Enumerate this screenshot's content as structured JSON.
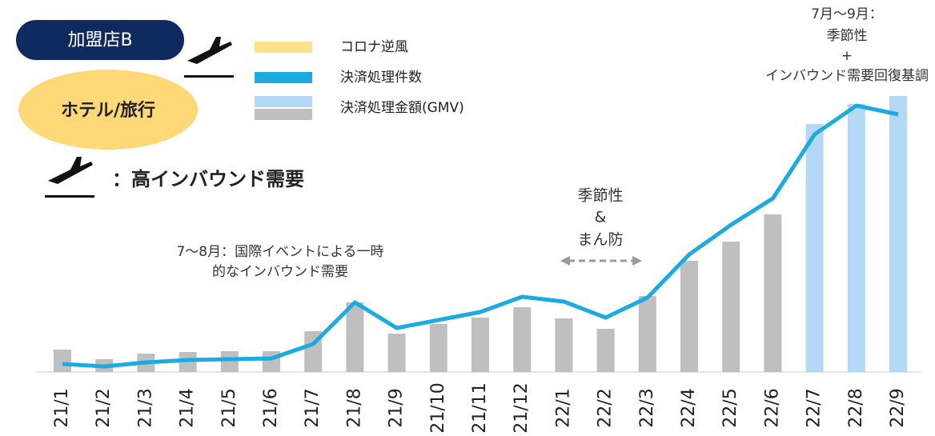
{
  "chart_data": {
    "type": "bar_line",
    "badge": "加盟店B",
    "segment": "ホテル/旅行",
    "icon_note": "：高インバウンド需要",
    "legend": [
      {
        "name": "コロナ逆風",
        "colors": [
          "#ffe187"
        ]
      },
      {
        "name": "決済処理件数",
        "colors": [
          "#1aabe3"
        ]
      },
      {
        "name": "決済処理金額(GMV)",
        "colors": [
          "#b3d9f7",
          "#bfbfbf"
        ]
      }
    ],
    "categories": [
      "21/1",
      "21/2",
      "21/3",
      "21/4",
      "21/5",
      "21/6",
      "21/7",
      "21/8",
      "21/9",
      "21/10",
      "21/11",
      "21/12",
      "22/1",
      "22/2",
      "22/3",
      "22/4",
      "22/5",
      "22/6",
      "22/7",
      "22/8",
      "22/9"
    ],
    "series": [
      {
        "name": "決済処理金額(GMV)",
        "kind": "bar",
        "colors": [
          "#bfbfbf",
          "#bfbfbf",
          "#bfbfbf",
          "#bfbfbf",
          "#bfbfbf",
          "#bfbfbf",
          "#bfbfbf",
          "#bfbfbf",
          "#bfbfbf",
          "#bfbfbf",
          "#bfbfbf",
          "#bfbfbf",
          "#bfbfbf",
          "#bfbfbf",
          "#bfbfbf",
          "#bfbfbf",
          "#bfbfbf",
          "#bfbfbf",
          "#b3d9f7",
          "#b3d9f7",
          "#b3d9f7"
        ],
        "values": [
          28,
          16,
          23,
          25,
          26,
          26,
          51,
          87,
          48,
          60,
          68,
          81,
          67,
          54,
          95,
          139,
          163,
          197,
          310,
          335,
          345
        ]
      },
      {
        "name": "決済処理件数",
        "kind": "line",
        "color": "#1aabe3",
        "values": [
          10,
          7,
          12,
          15,
          16,
          17,
          35,
          87,
          55,
          65,
          75,
          94,
          88,
          68,
          93,
          147,
          184,
          217,
          297,
          333,
          322
        ]
      }
    ],
    "ylim": [
      0,
      400
    ],
    "annotations": [
      {
        "lines": [
          "7〜8月：国際イベントによる一時",
          "的なインバウンド需要"
        ]
      },
      {
        "lines": [
          "季節性",
          "&",
          "まん防"
        ]
      },
      {
        "lines": [
          "7月〜9月：",
          "季節性",
          "+",
          "インバウンド需要回復基調"
        ]
      }
    ]
  }
}
